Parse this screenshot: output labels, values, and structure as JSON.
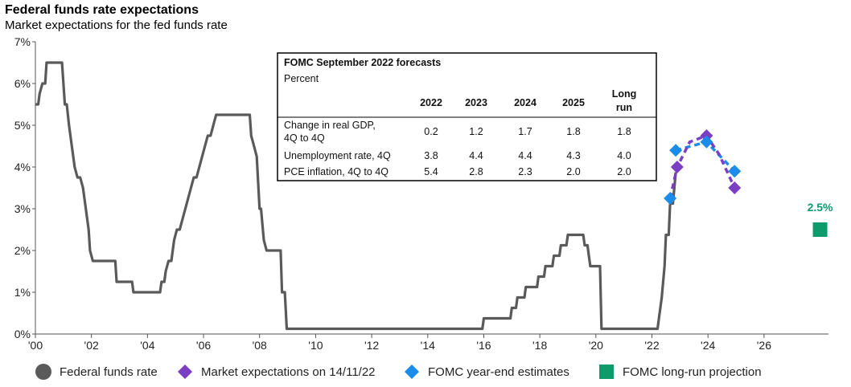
{
  "chart_data": {
    "type": "line",
    "title": "Federal funds rate expectations",
    "subtitle": "Market expectations for the fed funds rate",
    "xlim": [
      2000,
      2028.3
    ],
    "ylim": [
      0,
      7
    ],
    "y_ticks": [
      "0%",
      "1%",
      "2%",
      "3%",
      "4%",
      "5%",
      "6%",
      "7%"
    ],
    "x_ticks": [
      {
        "year": 2000,
        "label": "'00"
      },
      {
        "year": 2002,
        "label": "'02"
      },
      {
        "year": 2004,
        "label": "'04"
      },
      {
        "year": 2006,
        "label": "'06"
      },
      {
        "year": 2008,
        "label": "'08"
      },
      {
        "year": 2010,
        "label": "'10"
      },
      {
        "year": 2012,
        "label": "'12"
      },
      {
        "year": 2014,
        "label": "'14"
      },
      {
        "year": 2016,
        "label": "'16"
      },
      {
        "year": 2018,
        "label": "'18"
      },
      {
        "year": 2020,
        "label": "'20"
      },
      {
        "year": 2022,
        "label": "'22"
      },
      {
        "year": 2024,
        "label": "'24"
      },
      {
        "year": 2026,
        "label": "'26"
      }
    ],
    "series": [
      {
        "name": "Federal funds rate",
        "color": "#5a5a5a",
        "points": [
          [
            2000.0,
            5.5
          ],
          [
            2000.1,
            5.5
          ],
          [
            2000.15,
            5.75
          ],
          [
            2000.25,
            6.0
          ],
          [
            2000.35,
            6.0
          ],
          [
            2000.4,
            6.5
          ],
          [
            2000.95,
            6.5
          ],
          [
            2001.05,
            5.5
          ],
          [
            2001.12,
            5.5
          ],
          [
            2001.2,
            5.0
          ],
          [
            2001.3,
            4.5
          ],
          [
            2001.4,
            4.0
          ],
          [
            2001.5,
            3.75
          ],
          [
            2001.6,
            3.75
          ],
          [
            2001.7,
            3.5
          ],
          [
            2001.8,
            3.0
          ],
          [
            2001.9,
            2.5
          ],
          [
            2001.95,
            2.0
          ],
          [
            2002.05,
            1.75
          ],
          [
            2002.85,
            1.75
          ],
          [
            2002.9,
            1.25
          ],
          [
            2003.45,
            1.25
          ],
          [
            2003.5,
            1.0
          ],
          [
            2004.45,
            1.0
          ],
          [
            2004.5,
            1.25
          ],
          [
            2004.6,
            1.25
          ],
          [
            2004.65,
            1.5
          ],
          [
            2004.75,
            1.75
          ],
          [
            2004.85,
            1.75
          ],
          [
            2004.95,
            2.25
          ],
          [
            2005.05,
            2.5
          ],
          [
            2005.15,
            2.5
          ],
          [
            2005.25,
            2.75
          ],
          [
            2005.35,
            3.0
          ],
          [
            2005.45,
            3.25
          ],
          [
            2005.55,
            3.5
          ],
          [
            2005.65,
            3.75
          ],
          [
            2005.75,
            3.75
          ],
          [
            2005.85,
            4.0
          ],
          [
            2005.95,
            4.25
          ],
          [
            2006.05,
            4.5
          ],
          [
            2006.15,
            4.75
          ],
          [
            2006.25,
            4.75
          ],
          [
            2006.35,
            5.0
          ],
          [
            2006.45,
            5.25
          ],
          [
            2007.65,
            5.25
          ],
          [
            2007.7,
            4.75
          ],
          [
            2007.8,
            4.5
          ],
          [
            2007.9,
            4.25
          ],
          [
            2008.0,
            3.0
          ],
          [
            2008.05,
            3.0
          ],
          [
            2008.15,
            2.25
          ],
          [
            2008.25,
            2.0
          ],
          [
            2008.75,
            2.0
          ],
          [
            2008.8,
            1.0
          ],
          [
            2008.9,
            1.0
          ],
          [
            2008.97,
            0.125
          ],
          [
            2015.95,
            0.125
          ],
          [
            2016.0,
            0.375
          ],
          [
            2016.95,
            0.375
          ],
          [
            2017.0,
            0.625
          ],
          [
            2017.15,
            0.625
          ],
          [
            2017.2,
            0.875
          ],
          [
            2017.45,
            0.875
          ],
          [
            2017.5,
            1.125
          ],
          [
            2017.9,
            1.125
          ],
          [
            2017.95,
            1.375
          ],
          [
            2018.15,
            1.375
          ],
          [
            2018.2,
            1.625
          ],
          [
            2018.45,
            1.625
          ],
          [
            2018.5,
            1.875
          ],
          [
            2018.7,
            1.875
          ],
          [
            2018.75,
            2.125
          ],
          [
            2018.95,
            2.125
          ],
          [
            2019.0,
            2.375
          ],
          [
            2019.55,
            2.375
          ],
          [
            2019.6,
            2.125
          ],
          [
            2019.7,
            2.125
          ],
          [
            2019.75,
            1.875
          ],
          [
            2019.8,
            1.625
          ],
          [
            2020.15,
            1.625
          ],
          [
            2020.2,
            0.125
          ],
          [
            2022.2,
            0.125
          ],
          [
            2022.25,
            0.375
          ],
          [
            2022.35,
            0.875
          ],
          [
            2022.45,
            1.625
          ],
          [
            2022.5,
            2.375
          ],
          [
            2022.6,
            2.375
          ],
          [
            2022.65,
            3.125
          ],
          [
            2022.75,
            3.125
          ],
          [
            2022.85,
            3.875
          ]
        ]
      },
      {
        "name": "Market expectations on 14/11/22",
        "color": "#7b3fc4",
        "points": [
          [
            2022.65,
            3.25
          ],
          [
            2022.9,
            4.0
          ],
          [
            2023.35,
            4.6
          ],
          [
            2023.95,
            4.75
          ],
          [
            2024.4,
            4.3
          ],
          [
            2024.95,
            3.5
          ]
        ]
      },
      {
        "name": "FOMC year-end estimates",
        "color": "#1b8de8",
        "points": [
          [
            2022.85,
            4.4
          ],
          [
            2023.95,
            4.6
          ],
          [
            2024.95,
            3.9
          ]
        ]
      },
      {
        "name": "FOMC long-run projection",
        "color": "#0f9a6c",
        "points": [
          [
            2028.0,
            2.5
          ]
        ],
        "label": "2.5%"
      }
    ],
    "market_markers": [
      [
        2022.9,
        4.0
      ],
      [
        2023.95,
        4.75
      ],
      [
        2024.95,
        3.5
      ]
    ],
    "fomc_markers": [
      [
        2022.65,
        3.25
      ],
      [
        2022.85,
        4.4
      ],
      [
        2023.95,
        4.6
      ],
      [
        2024.95,
        3.9
      ]
    ],
    "legend": {
      "position": "bottom",
      "items": [
        {
          "label": "Federal funds rate",
          "marker": "circle",
          "color": "#5a5a5a"
        },
        {
          "label": "Market expectations on 14/11/22",
          "marker": "diamond",
          "color": "#7b3fc4"
        },
        {
          "label": "FOMC year-end estimates",
          "marker": "diamond",
          "color": "#1b8de8"
        },
        {
          "label": "FOMC long-run projection",
          "marker": "square",
          "color": "#0f9a6c"
        }
      ]
    },
    "table": {
      "title": "FOMC September 2022 forecasts",
      "unit": "Percent",
      "columns": [
        "2022",
        "2023",
        "2024",
        "2025",
        "Long run"
      ],
      "rows": [
        {
          "label": "Change in real GDP, 4Q to 4Q",
          "values": [
            "0.2",
            "1.2",
            "1.7",
            "1.8",
            "1.8"
          ]
        },
        {
          "label": "Unemployment rate, 4Q",
          "values": [
            "3.8",
            "4.4",
            "4.4",
            "4.3",
            "4.0"
          ]
        },
        {
          "label": "PCE inflation, 4Q to 4Q",
          "values": [
            "5.4",
            "2.8",
            "2.3",
            "2.0",
            "2.0"
          ]
        }
      ]
    }
  }
}
